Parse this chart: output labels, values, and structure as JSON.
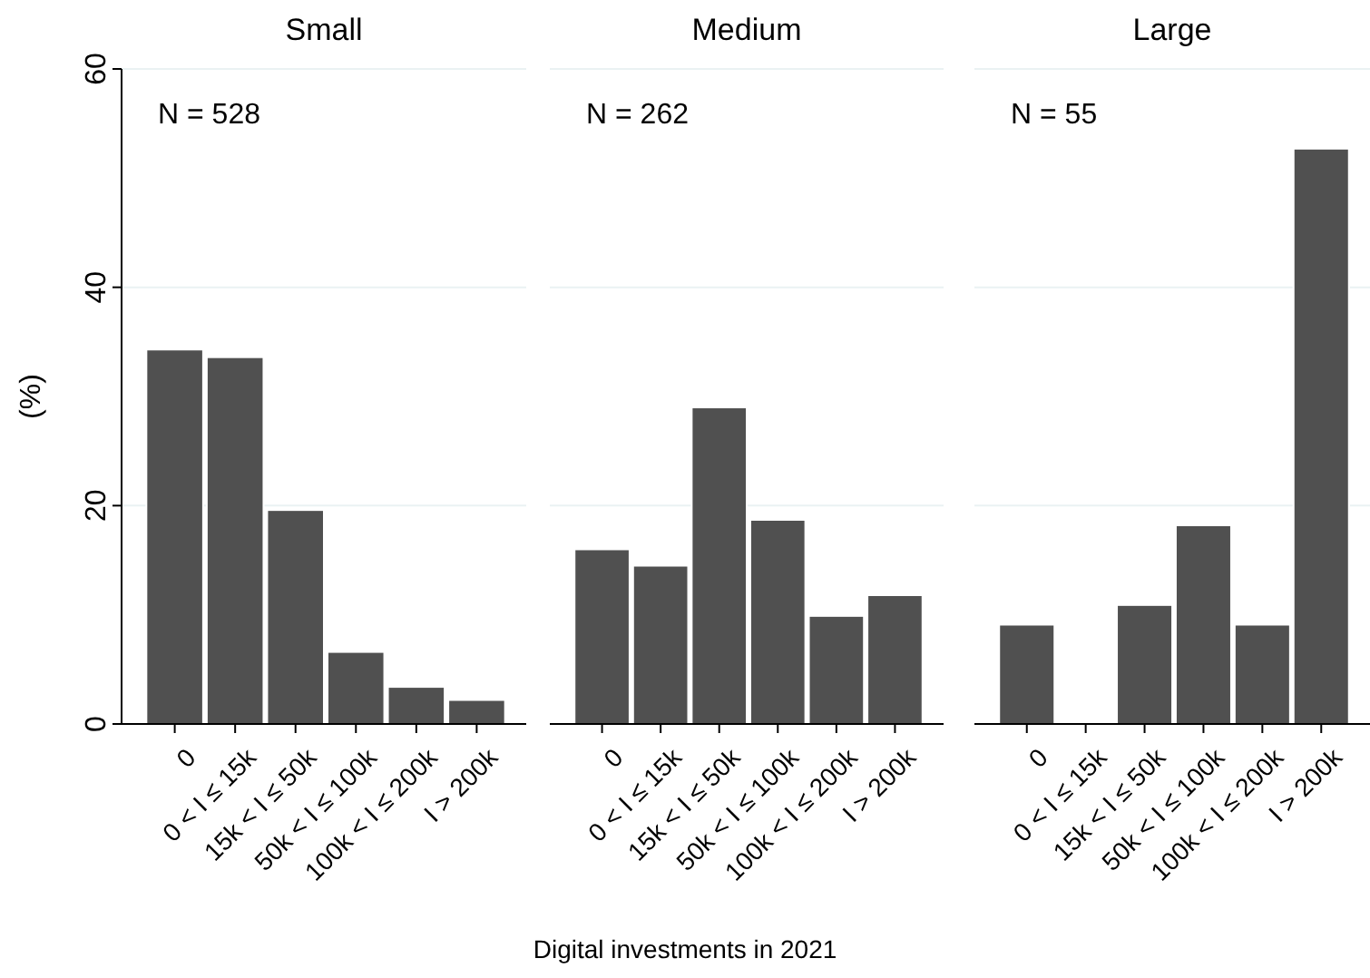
{
  "chart_data": [
    {
      "type": "bar",
      "title": "Small",
      "ylabel": "(%)",
      "categories": [
        "0",
        "0 < I ≤ 15k",
        "15k < I ≤ 50k",
        "50k < I ≤ 100k",
        "100k < I ≤ 200k",
        "I > 200k"
      ],
      "values": [
        34.3,
        33.6,
        19.6,
        6.6,
        3.4,
        2.2
      ],
      "color": "#505050",
      "ylim": [
        0,
        60
      ],
      "yticks": [
        0,
        20,
        40,
        60
      ],
      "grid": "y",
      "annotations": [
        "N = 528"
      ]
    },
    {
      "type": "bar",
      "title": "Medium",
      "xlabel": "Digital investments in 2021",
      "categories": [
        "0",
        "0 < I ≤ 15k",
        "15k < I ≤ 50k",
        "50k < I ≤ 100k",
        "100k < I ≤ 200k",
        "I > 200k"
      ],
      "values": [
        16.0,
        14.5,
        29.0,
        18.7,
        9.9,
        11.8
      ],
      "color": "#505050",
      "ylim": [
        0,
        60
      ],
      "yticks": [
        0,
        20,
        40,
        60
      ],
      "grid": "y",
      "tick_labels": "x",
      "annotations": [
        "N = 262"
      ]
    },
    {
      "type": "bar",
      "title": "Large",
      "categories": [
        "0",
        "0 < I ≤ 15k",
        "15k < I ≤ 50k",
        "50k < I ≤ 100k",
        "100k < I ≤ 200k",
        "I > 200k"
      ],
      "values": [
        9.1,
        0,
        10.9,
        18.2,
        9.1,
        52.7
      ],
      "color": "#505050",
      "ylim": [
        0,
        60
      ],
      "yticks": [
        0,
        20,
        40,
        60
      ],
      "grid": "y",
      "tick_labels": "x",
      "annotations": [
        "N = 55"
      ]
    }
  ]
}
